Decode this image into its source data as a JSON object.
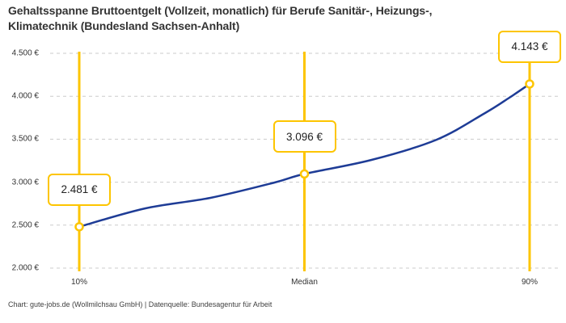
{
  "title": {
    "lines": [
      "Gehaltsspanne Bruttoentgelt (Vollzeit, monatlich) für Berufe Sanitär-, Heizungs-,",
      "Klimatechnik (Bundesland Sachsen-Anhalt)"
    ]
  },
  "footer": {
    "text": "Chart: gute-jobs.de (Wollmilchsau GmbH) | Datenquelle: Bundesagentur für Arbeit"
  },
  "chart_data": {
    "type": "line",
    "title": "Gehaltsspanne Bruttoentgelt (Vollzeit, monatlich) für Berufe Sanitär-, Heizungs-, Klimatechnik (Bundesland Sachsen-Anhalt)",
    "categories": [
      "10%",
      "Median",
      "90%"
    ],
    "values": [
      2481,
      3096,
      4143
    ],
    "value_labels": [
      "2.481 €",
      "3.096 €",
      "4.143 €"
    ],
    "xlabel": "",
    "ylabel": "",
    "ylim": [
      2000,
      4500
    ],
    "y_ticks": [
      4500,
      4000,
      3500,
      3000,
      2500,
      2000
    ],
    "y_tick_labels": [
      "4.500 €",
      "4.000 €",
      "3.500 €",
      "3.000 €",
      "2.500 €",
      "2.000 €"
    ],
    "grid": "horizontal-dashed",
    "legend": "none",
    "colors": {
      "line": "#1e3c96",
      "highlight": "#fdc500",
      "grid": "#cbcbcb",
      "text": "#333333",
      "background": "#ffffff"
    }
  }
}
